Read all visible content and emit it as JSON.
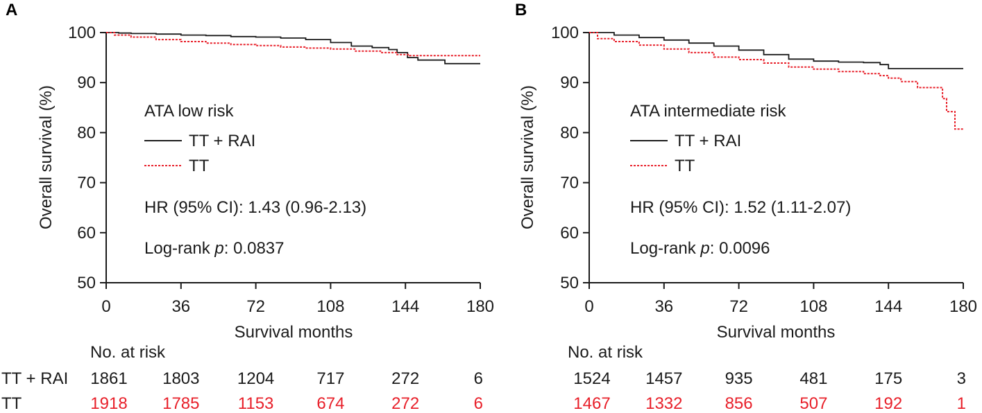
{
  "colors": {
    "tt_rai": "#1a1a1a",
    "tt": "#e8202a",
    "axis": "#1a1a1a"
  },
  "chart_data": [
    {
      "type": "line",
      "panel_label": "A",
      "subtitle": "ATA low risk",
      "xlabel": "Survival months",
      "ylabel": "Overall survival (%)",
      "xlim": [
        0,
        180
      ],
      "ylim": [
        50,
        100
      ],
      "xticks": [
        0,
        36,
        72,
        108,
        144,
        180
      ],
      "yticks": [
        50,
        60,
        70,
        80,
        90,
        100
      ],
      "legend": [
        {
          "name": "TT + RAI",
          "style": "solid"
        },
        {
          "name": "TT",
          "style": "dotted"
        }
      ],
      "hr_text": "HR (95% CI): 1.43 (0.96-2.13)",
      "logrank_prefix": "Log-rank ",
      "logrank_p": "p",
      "logrank_value": ": 0.0837",
      "series": [
        {
          "name": "TT + RAI",
          "points": [
            [
              0,
              100
            ],
            [
              6,
              99.9
            ],
            [
              12,
              99.8
            ],
            [
              24,
              99.7
            ],
            [
              36,
              99.5
            ],
            [
              48,
              99.4
            ],
            [
              60,
              99.2
            ],
            [
              72,
              99.1
            ],
            [
              84,
              98.9
            ],
            [
              96,
              98.6
            ],
            [
              108,
              98.0
            ],
            [
              118,
              97.3
            ],
            [
              128,
              97.0
            ],
            [
              136,
              96.6
            ],
            [
              140,
              96.0
            ],
            [
              145,
              95.0
            ],
            [
              150,
              94.5
            ],
            [
              163,
              94.5
            ],
            [
              163,
              93.8
            ],
            [
              180,
              93.8
            ]
          ]
        },
        {
          "name": "TT",
          "points": [
            [
              0,
              100
            ],
            [
              4,
              99.5
            ],
            [
              12,
              99.1
            ],
            [
              24,
              98.6
            ],
            [
              36,
              98.2
            ],
            [
              48,
              97.9
            ],
            [
              60,
              97.6
            ],
            [
              72,
              97.4
            ],
            [
              84,
              97.1
            ],
            [
              96,
              96.9
            ],
            [
              108,
              96.7
            ],
            [
              120,
              96.3
            ],
            [
              132,
              96.0
            ],
            [
              140,
              95.6
            ],
            [
              146,
              95.4
            ],
            [
              180,
              95.4
            ]
          ]
        }
      ],
      "risk_table": {
        "title": "No. at risk",
        "rows": [
          {
            "name": "TT + RAI",
            "values": [
              "1861",
              "1803",
              "1204",
              "717",
              "272",
              "6"
            ]
          },
          {
            "name": "TT",
            "values": [
              "1918",
              "1785",
              "1153",
              "674",
              "272",
              "6"
            ]
          }
        ]
      }
    },
    {
      "type": "line",
      "panel_label": "B",
      "subtitle": "ATA intermediate risk",
      "xlabel": "Survival months",
      "ylabel": "Overall survival (%)",
      "xlim": [
        0,
        180
      ],
      "ylim": [
        50,
        100
      ],
      "xticks": [
        0,
        36,
        72,
        108,
        144,
        180
      ],
      "yticks": [
        50,
        60,
        70,
        80,
        90,
        100
      ],
      "legend": [
        {
          "name": "TT + RAI",
          "style": "solid"
        },
        {
          "name": "TT",
          "style": "dotted"
        }
      ],
      "hr_text": "HR (95% CI): 1.52 (1.11-2.07)",
      "logrank_prefix": "Log-rank ",
      "logrank_p": "p",
      "logrank_value": ": 0.0096",
      "series": [
        {
          "name": "TT + RAI",
          "points": [
            [
              0,
              100
            ],
            [
              12,
              99.5
            ],
            [
              24,
              99.0
            ],
            [
              36,
              98.5
            ],
            [
              48,
              97.9
            ],
            [
              60,
              97.3
            ],
            [
              72,
              96.5
            ],
            [
              84,
              95.6
            ],
            [
              96,
              94.7
            ],
            [
              108,
              94.3
            ],
            [
              120,
              94.1
            ],
            [
              132,
              94.0
            ],
            [
              140,
              93.6
            ],
            [
              144,
              92.8
            ],
            [
              180,
              92.8
            ]
          ]
        },
        {
          "name": "TT",
          "points": [
            [
              0,
              100
            ],
            [
              4,
              98.8
            ],
            [
              12,
              98.2
            ],
            [
              24,
              97.5
            ],
            [
              36,
              96.7
            ],
            [
              48,
              96.0
            ],
            [
              60,
              95.1
            ],
            [
              72,
              94.6
            ],
            [
              84,
              93.9
            ],
            [
              96,
              93.1
            ],
            [
              108,
              92.7
            ],
            [
              120,
              92.2
            ],
            [
              132,
              91.8
            ],
            [
              140,
              91.4
            ],
            [
              144,
              90.9
            ],
            [
              150,
              90.2
            ],
            [
              158,
              89.0
            ],
            [
              168,
              89.0
            ],
            [
              170,
              86.8
            ],
            [
              172,
              84.2
            ],
            [
              174,
              84.2
            ],
            [
              176,
              80.7
            ],
            [
              180,
              80.7
            ]
          ]
        }
      ],
      "risk_table": {
        "title": "No. at risk",
        "rows": [
          {
            "name": "TT + RAI",
            "values": [
              "1524",
              "1457",
              "935",
              "481",
              "175",
              "3"
            ]
          },
          {
            "name": "TT",
            "values": [
              "1467",
              "1332",
              "856",
              "507",
              "192",
              "1"
            ]
          }
        ]
      }
    }
  ]
}
